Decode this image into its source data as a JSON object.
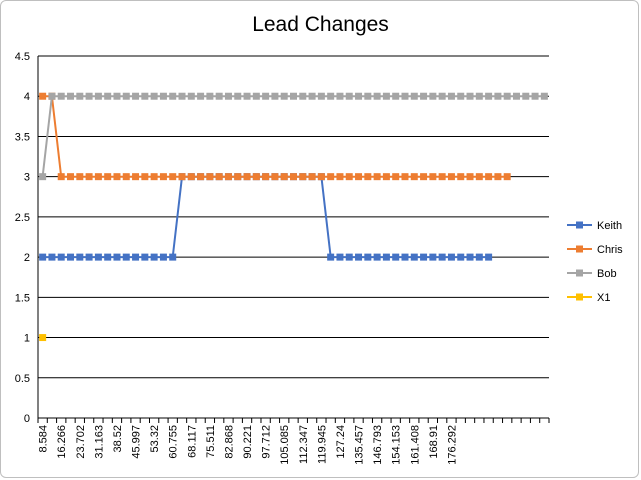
{
  "chart_data": {
    "type": "line",
    "title": "Lead Changes",
    "xlabel": "",
    "ylabel": "",
    "ylim": [
      0,
      4.5
    ],
    "y_ticks": [
      "0",
      "0.5",
      "1",
      "1.5",
      "2",
      "2.5",
      "3",
      "3.5",
      "4",
      "4.5"
    ],
    "grid": true,
    "legend_position": "right",
    "x_tick_labels": [
      "8.584",
      "16.266",
      "23.702",
      "31.163",
      "38.52",
      "45.997",
      "53.32",
      "60.755",
      "68.117",
      "75.511",
      "82.868",
      "90.221",
      "97.712",
      "105.085",
      "112.347",
      "119.945",
      "127.24",
      "135.457",
      "146.793",
      "154.153",
      "161.408",
      "168.91",
      "176.292"
    ],
    "category_count": 55,
    "series": [
      {
        "name": "Keith",
        "color": "#4472C4",
        "values": [
          2,
          2,
          2,
          2,
          2,
          2,
          2,
          2,
          2,
          2,
          2,
          2,
          2,
          2,
          2,
          3,
          3,
          3,
          3,
          3,
          3,
          3,
          3,
          3,
          3,
          3,
          3,
          3,
          3,
          3,
          3,
          2,
          2,
          2,
          2,
          2,
          2,
          2,
          2,
          2,
          2,
          2,
          2,
          2,
          2,
          2,
          2,
          2,
          2
        ]
      },
      {
        "name": "Chris",
        "color": "#ED7D31",
        "values": [
          4,
          4,
          3,
          3,
          3,
          3,
          3,
          3,
          3,
          3,
          3,
          3,
          3,
          3,
          3,
          3,
          3,
          3,
          3,
          3,
          3,
          3,
          3,
          3,
          3,
          3,
          3,
          3,
          3,
          3,
          3,
          3,
          3,
          3,
          3,
          3,
          3,
          3,
          3,
          3,
          3,
          3,
          3,
          3,
          3,
          3,
          3,
          3,
          3,
          3,
          3
        ]
      },
      {
        "name": "Bob",
        "color": "#A5A5A5",
        "values": [
          3,
          4,
          4,
          4,
          4,
          4,
          4,
          4,
          4,
          4,
          4,
          4,
          4,
          4,
          4,
          4,
          4,
          4,
          4,
          4,
          4,
          4,
          4,
          4,
          4,
          4,
          4,
          4,
          4,
          4,
          4,
          4,
          4,
          4,
          4,
          4,
          4,
          4,
          4,
          4,
          4,
          4,
          4,
          4,
          4,
          4,
          4,
          4,
          4,
          4,
          4,
          4,
          4,
          4,
          4
        ]
      },
      {
        "name": "X1",
        "color": "#FFC000",
        "values": [
          1
        ]
      }
    ]
  }
}
